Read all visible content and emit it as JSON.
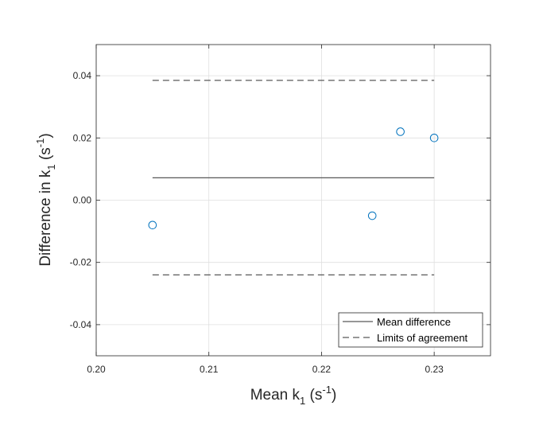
{
  "chart_data": {
    "type": "scatter",
    "xlabel": {
      "main": "Mean k",
      "sub": "1",
      "unit_open": " (s",
      "unit_sup": "-1",
      "unit_close": ")"
    },
    "ylabel": {
      "main": "Difference in k",
      "sub": "1",
      "unit_open": " (s",
      "unit_sup": "-1",
      "unit_close": ")"
    },
    "xlim": [
      0.2,
      0.235
    ],
    "ylim": [
      -0.05,
      0.05
    ],
    "x_ticks": [
      0.2,
      0.21,
      0.22,
      0.23
    ],
    "x_tick_labels": [
      "0.20",
      "0.21",
      "0.22",
      "0.23"
    ],
    "y_ticks": [
      -0.04,
      -0.02,
      0.0,
      0.02,
      0.04
    ],
    "y_tick_labels": [
      "-0.04",
      "-0.02",
      "0.00",
      "0.02",
      "0.04"
    ],
    "grid": true,
    "points": [
      {
        "x": 0.205,
        "y": -0.008
      },
      {
        "x": 0.2245,
        "y": -0.005
      },
      {
        "x": 0.227,
        "y": 0.022
      },
      {
        "x": 0.23,
        "y": 0.02
      }
    ],
    "mean_difference": {
      "y": 0.0072,
      "x_range": [
        0.205,
        0.23
      ]
    },
    "limits_of_agreement": {
      "upper": 0.0385,
      "lower": -0.024,
      "x_range": [
        0.205,
        0.23
      ]
    },
    "legend": {
      "position": "bottom-right",
      "entries": [
        "Mean difference",
        "Limits of agreement"
      ]
    },
    "colors": {
      "points": "#0072BD",
      "lines": "#595959",
      "grid": "#dfdfdf",
      "axes": "#262626"
    }
  }
}
